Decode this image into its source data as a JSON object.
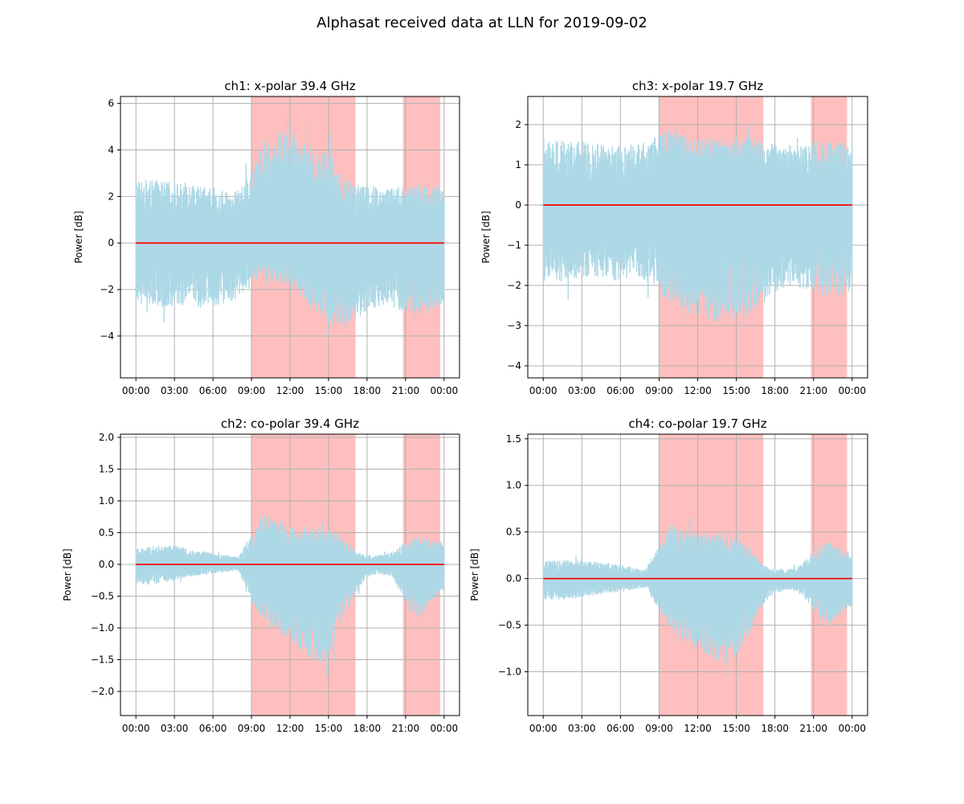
{
  "figure": {
    "title": "Alphasat received data at LLN for 2019-09-02"
  },
  "colors": {
    "signal": "#add8e6",
    "mean_line": "#ff0000",
    "highlight": "#ffbfbf",
    "grid": "#b0b0b0"
  },
  "chart_data": [
    {
      "id": "ch1",
      "type": "line",
      "title": "ch1: x-polar 39.4 GHz",
      "xlabel": "",
      "ylabel": "Power [dB]",
      "xlim": [
        -1.2,
        25.2
      ],
      "ylim": [
        -5.8,
        6.3
      ],
      "yticks": [
        -4,
        -2,
        0,
        2,
        4,
        6
      ],
      "yticklabels": [
        "−4",
        "−2",
        "0",
        "2",
        "4",
        "6"
      ],
      "xticks": [
        0,
        3,
        6,
        9,
        12,
        15,
        18,
        21,
        24
      ],
      "xticklabels": [
        "00:00",
        "03:00",
        "06:00",
        "09:00",
        "12:00",
        "15:00",
        "18:00",
        "21:00",
        "00:00"
      ],
      "grid": true,
      "highlight_spans": [
        [
          9.0,
          17.1
        ],
        [
          20.8,
          23.7
        ]
      ],
      "mean_line": 0,
      "envelope": {
        "x": [
          0,
          1,
          2,
          3,
          4,
          5,
          6,
          7,
          8,
          9,
          10,
          11,
          12,
          13,
          14,
          15,
          16,
          17,
          18,
          19,
          20,
          21,
          22,
          23,
          24
        ],
        "upper": [
          2.8,
          2.7,
          2.7,
          2.6,
          2.6,
          2.5,
          2.4,
          2.2,
          2.3,
          3.2,
          4.5,
          4.9,
          4.8,
          4.5,
          4.3,
          4.0,
          3.0,
          2.6,
          2.5,
          2.4,
          2.4,
          2.5,
          2.6,
          2.5,
          2.4
        ],
        "lower": [
          -2.6,
          -2.7,
          -2.8,
          -2.7,
          -2.7,
          -2.8,
          -2.7,
          -2.6,
          -2.4,
          -1.6,
          -1.5,
          -1.8,
          -2.0,
          -2.4,
          -3.0,
          -3.6,
          -3.8,
          -3.4,
          -2.9,
          -2.8,
          -2.8,
          -3.0,
          -3.1,
          -3.0,
          -2.8
        ]
      }
    },
    {
      "id": "ch3",
      "type": "line",
      "title": "ch3: x-polar 19.7 GHz",
      "xlabel": "",
      "ylabel": "Power [dB]",
      "xlim": [
        -1.2,
        25.2
      ],
      "ylim": [
        -4.3,
        2.7
      ],
      "yticks": [
        -4,
        -3,
        -2,
        -1,
        0,
        1,
        2
      ],
      "yticklabels": [
        "−4",
        "−3",
        "−2",
        "−1",
        "0",
        "1",
        "2"
      ],
      "xticks": [
        0,
        3,
        6,
        9,
        12,
        15,
        18,
        21,
        24
      ],
      "xticklabels": [
        "00:00",
        "03:00",
        "06:00",
        "09:00",
        "12:00",
        "15:00",
        "18:00",
        "21:00",
        "00:00"
      ],
      "grid": true,
      "highlight_spans": [
        [
          9.0,
          17.1
        ],
        [
          20.8,
          23.6
        ]
      ],
      "mean_line": 0,
      "envelope": {
        "x": [
          0,
          1,
          2,
          3,
          4,
          5,
          6,
          7,
          8,
          9,
          10,
          11,
          12,
          13,
          14,
          15,
          16,
          17,
          18,
          19,
          20,
          21,
          22,
          23,
          24
        ],
        "upper": [
          1.7,
          1.6,
          1.6,
          1.6,
          1.6,
          1.5,
          1.5,
          1.5,
          1.6,
          1.8,
          1.9,
          1.8,
          1.7,
          1.7,
          1.7,
          1.7,
          1.7,
          1.6,
          1.5,
          1.5,
          1.5,
          1.6,
          1.6,
          1.6,
          1.5
        ],
        "lower": [
          -1.9,
          -1.9,
          -1.9,
          -1.8,
          -1.8,
          -1.9,
          -1.9,
          -1.8,
          -1.9,
          -2.2,
          -2.5,
          -2.7,
          -2.8,
          -2.9,
          -3.0,
          -2.9,
          -2.8,
          -2.5,
          -2.2,
          -2.1,
          -2.1,
          -2.2,
          -2.3,
          -2.3,
          -2.2
        ]
      }
    },
    {
      "id": "ch2",
      "type": "line",
      "title": "ch2: co-polar 39.4 GHz",
      "xlabel": "",
      "ylabel": "Power [dB]",
      "xlim": [
        -1.2,
        25.2
      ],
      "ylim": [
        -2.38,
        2.05
      ],
      "yticks": [
        -2.0,
        -1.5,
        -1.0,
        -0.5,
        0.0,
        0.5,
        1.0,
        1.5,
        2.0
      ],
      "yticklabels": [
        "−2.0",
        "−1.5",
        "−1.0",
        "−0.5",
        "0.0",
        "0.5",
        "1.0",
        "1.5",
        "2.0"
      ],
      "xticks": [
        0,
        3,
        6,
        9,
        12,
        15,
        18,
        21,
        24
      ],
      "xticklabels": [
        "00:00",
        "03:00",
        "06:00",
        "09:00",
        "12:00",
        "15:00",
        "18:00",
        "21:00",
        "00:00"
      ],
      "grid": true,
      "highlight_spans": [
        [
          9.0,
          17.1
        ],
        [
          20.8,
          23.7
        ]
      ],
      "mean_line": 0,
      "envelope": {
        "x": [
          0,
          1,
          2,
          3,
          4,
          5,
          6,
          7,
          8,
          9,
          10,
          11,
          12,
          13,
          14,
          15,
          16,
          17,
          18,
          19,
          20,
          21,
          22,
          23,
          24
        ],
        "upper": [
          0.25,
          0.28,
          0.3,
          0.3,
          0.25,
          0.22,
          0.18,
          0.15,
          0.12,
          0.5,
          0.8,
          0.75,
          0.6,
          0.55,
          0.6,
          0.55,
          0.45,
          0.2,
          0.15,
          0.15,
          0.2,
          0.35,
          0.45,
          0.4,
          0.35
        ],
        "lower": [
          -0.3,
          -0.32,
          -0.3,
          -0.25,
          -0.2,
          -0.18,
          -0.15,
          -0.12,
          -0.1,
          -0.6,
          -0.9,
          -1.1,
          -1.2,
          -1.4,
          -1.6,
          -1.5,
          -0.9,
          -0.5,
          -0.2,
          -0.15,
          -0.2,
          -0.6,
          -0.85,
          -0.6,
          -0.4
        ]
      }
    },
    {
      "id": "ch4",
      "type": "line",
      "title": "ch4: co-polar 19.7 GHz",
      "xlabel": "",
      "ylabel": "Power [dB]",
      "xlim": [
        -1.2,
        25.2
      ],
      "ylim": [
        -1.47,
        1.55
      ],
      "yticks": [
        -1.0,
        -0.5,
        0.0,
        0.5,
        1.0,
        1.5
      ],
      "yticklabels": [
        "−1.0",
        "−0.5",
        "0.0",
        "0.5",
        "1.0",
        "1.5"
      ],
      "xticks": [
        0,
        3,
        6,
        9,
        12,
        15,
        18,
        21,
        24
      ],
      "xticklabels": [
        "00:00",
        "03:00",
        "06:00",
        "09:00",
        "12:00",
        "15:00",
        "18:00",
        "21:00",
        "00:00"
      ],
      "grid": true,
      "highlight_spans": [
        [
          9.0,
          17.1
        ],
        [
          20.8,
          23.6
        ]
      ],
      "mean_line": 0,
      "envelope": {
        "x": [
          0,
          1,
          2,
          3,
          4,
          5,
          6,
          7,
          8,
          9,
          10,
          11,
          12,
          13,
          14,
          15,
          16,
          17,
          18,
          19,
          20,
          21,
          22,
          23,
          24
        ],
        "upper": [
          0.18,
          0.2,
          0.2,
          0.2,
          0.18,
          0.17,
          0.15,
          0.12,
          0.1,
          0.35,
          0.6,
          0.55,
          0.5,
          0.45,
          0.5,
          0.45,
          0.35,
          0.15,
          0.1,
          0.1,
          0.15,
          0.3,
          0.4,
          0.35,
          0.25
        ],
        "lower": [
          -0.22,
          -0.23,
          -0.22,
          -0.2,
          -0.18,
          -0.16,
          -0.14,
          -0.12,
          -0.1,
          -0.35,
          -0.55,
          -0.65,
          -0.75,
          -0.85,
          -0.95,
          -0.85,
          -0.6,
          -0.3,
          -0.15,
          -0.12,
          -0.15,
          -0.35,
          -0.5,
          -0.4,
          -0.3
        ]
      }
    }
  ]
}
